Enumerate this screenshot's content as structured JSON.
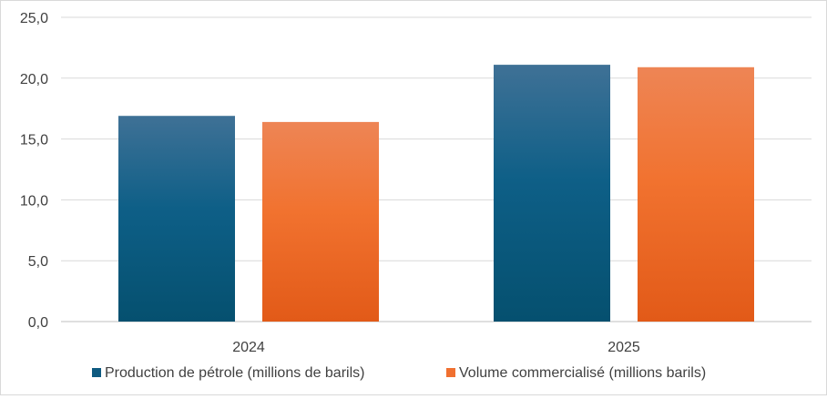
{
  "chart_data": {
    "type": "bar",
    "title": "",
    "xlabel": "",
    "ylabel": "",
    "categories": [
      "2024",
      "2025"
    ],
    "series": [
      {
        "name": "Production de pétrole (millions de barils)",
        "values": [
          16.9,
          21.1
        ],
        "color": "#0e5a80"
      },
      {
        "name": "Volume commercialisé (millions barils)",
        "values": [
          16.4,
          20.9
        ],
        "color": "#f07030"
      }
    ],
    "ylim": [
      0,
      25
    ],
    "yticks": [
      "0,0",
      "5,0",
      "10,0",
      "15,0",
      "20,0",
      "25,0"
    ],
    "grid": true,
    "legend_position": "bottom"
  }
}
